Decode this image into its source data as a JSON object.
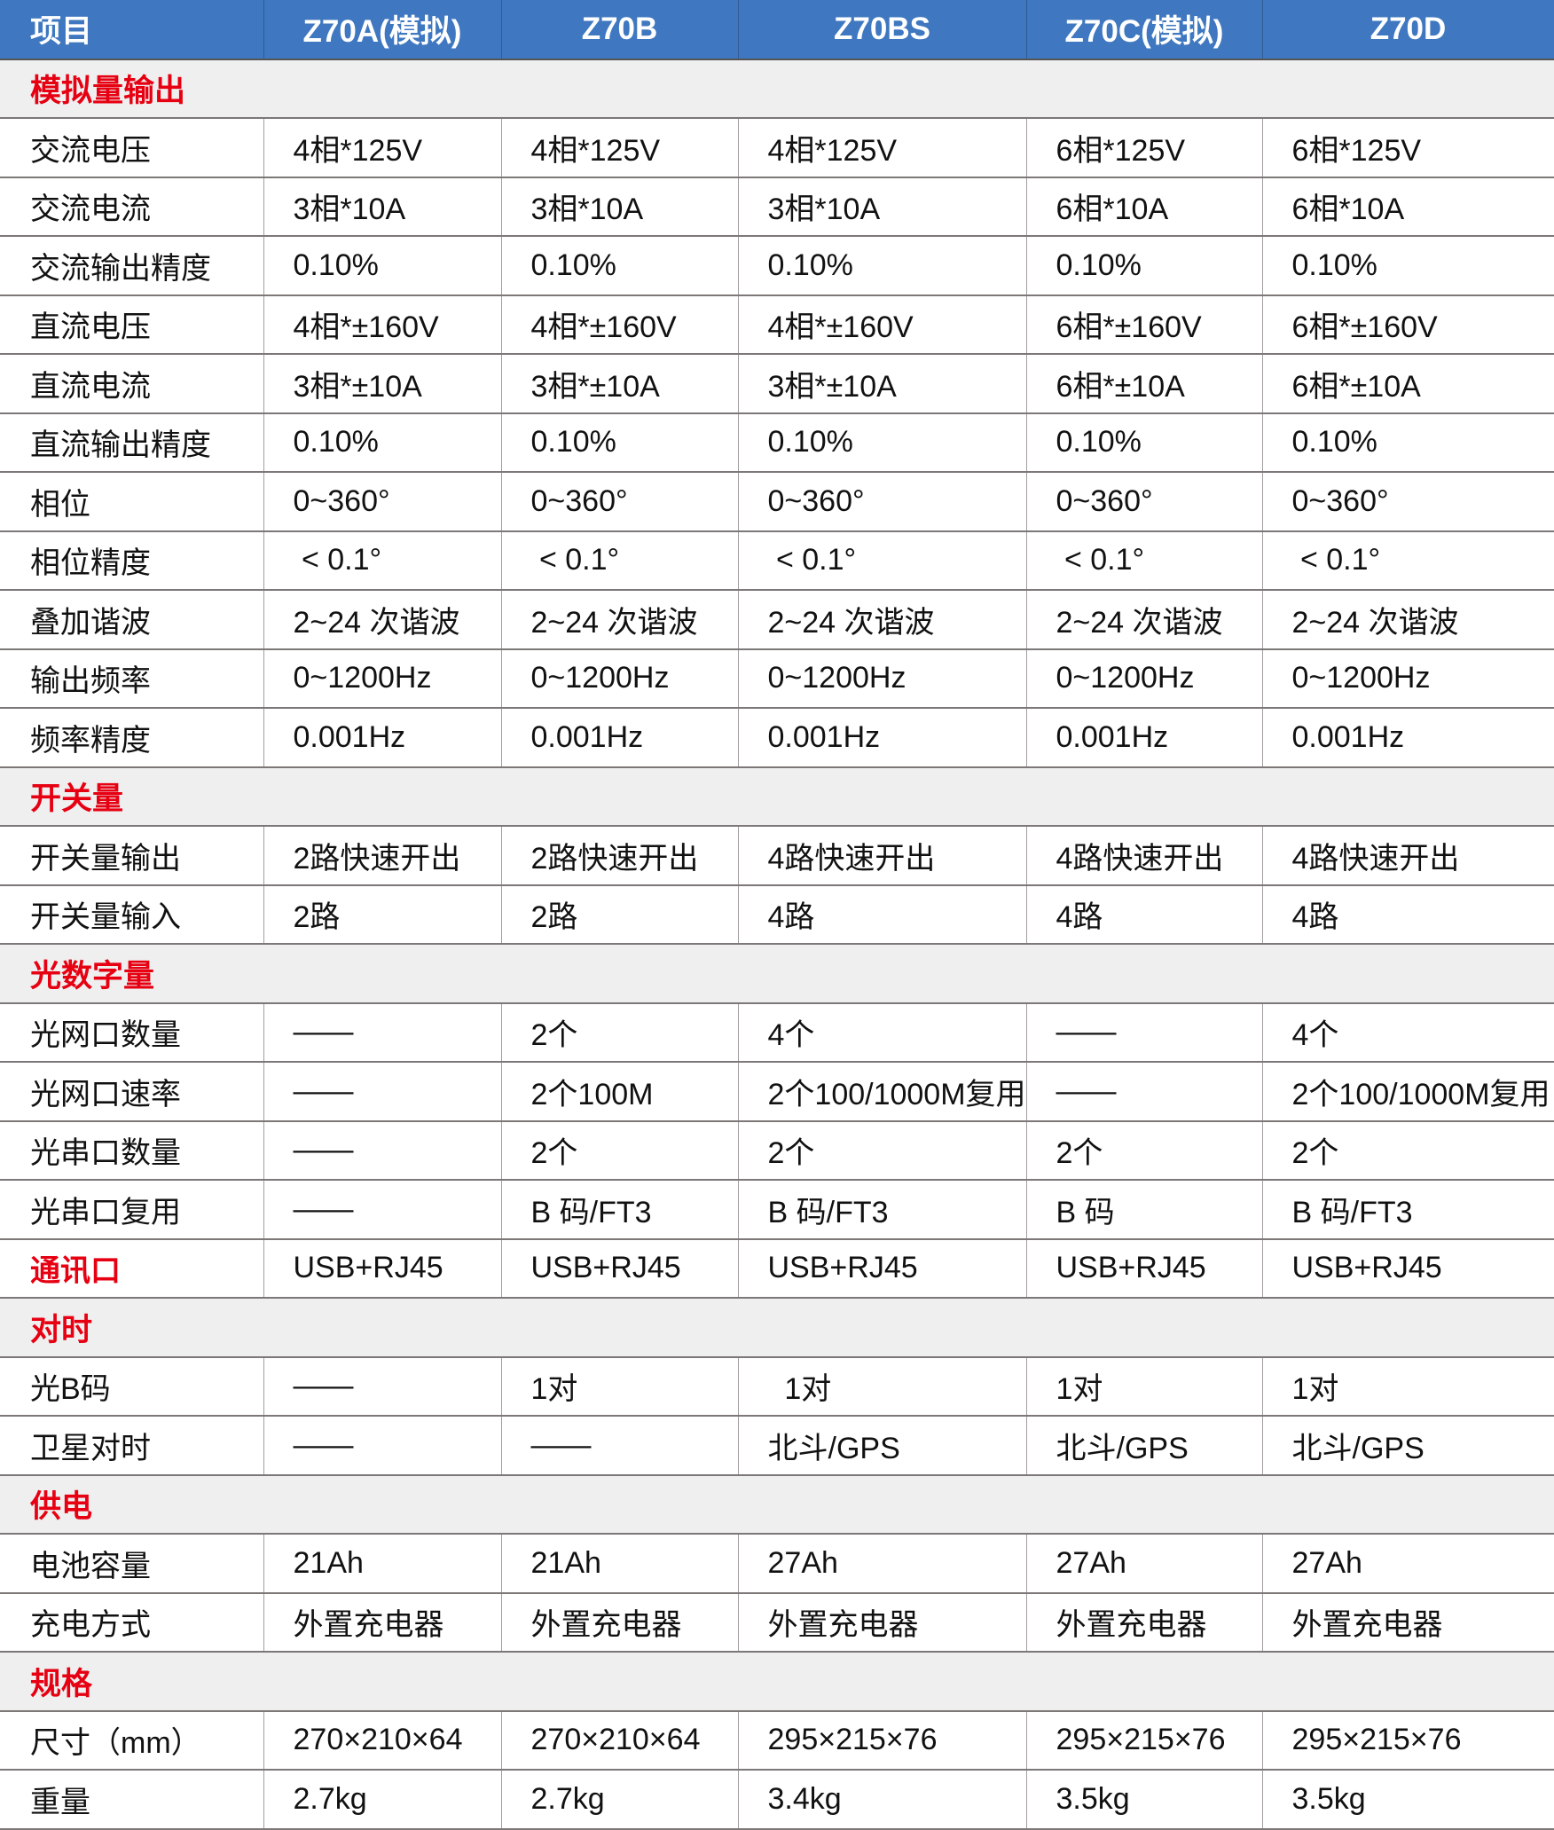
{
  "colors": {
    "header_bg": "#3f78c0",
    "section_bg": "#efefef",
    "section_text": "#e60012"
  },
  "headers": [
    "项目",
    "Z70A(模拟)",
    "Z70B",
    "Z70BS",
    "Z70C(模拟)",
    "Z70D"
  ],
  "rows": [
    {
      "type": "section",
      "title": "模拟量输出"
    },
    {
      "label": "交流电压",
      "values": [
        "4相*125V",
        "4相*125V",
        "4相*125V",
        "6相*125V",
        "6相*125V"
      ]
    },
    {
      "label": "交流电流",
      "values": [
        "3相*10A",
        "3相*10A",
        "3相*10A",
        "6相*10A",
        "6相*10A"
      ]
    },
    {
      "label": "交流输出精度",
      "values": [
        "0.10%",
        "0.10%",
        "0.10%",
        "0.10%",
        "0.10%"
      ]
    },
    {
      "label": "直流电压",
      "values": [
        "4相*±160V",
        "4相*±160V",
        "4相*±160V",
        "6相*±160V",
        "6相*±160V"
      ]
    },
    {
      "label": "直流电流",
      "values": [
        "3相*±10A",
        "3相*±10A",
        "3相*±10A",
        "6相*±10A",
        "6相*±10A"
      ]
    },
    {
      "label": "直流输出精度",
      "values": [
        "0.10%",
        "0.10%",
        "0.10%",
        "0.10%",
        "0.10%"
      ]
    },
    {
      "label": "相位",
      "values": [
        "0~360°",
        "0~360°",
        "0~360°",
        "0~360°",
        "0~360°"
      ]
    },
    {
      "label": "相位精度",
      "values": [
        " < 0.1°",
        " < 0.1°",
        " < 0.1°",
        " < 0.1°",
        " < 0.1°"
      ]
    },
    {
      "label": "叠加谐波",
      "values": [
        "2~24 次谐波",
        "2~24 次谐波",
        "2~24 次谐波",
        "2~24 次谐波",
        "2~24 次谐波"
      ]
    },
    {
      "label": "输出频率",
      "values": [
        "0~1200Hz",
        "0~1200Hz",
        "0~1200Hz",
        "0~1200Hz",
        "0~1200Hz"
      ]
    },
    {
      "label": "频率精度",
      "values": [
        "0.001Hz",
        "0.001Hz",
        "0.001Hz",
        "0.001Hz",
        "0.001Hz"
      ]
    },
    {
      "type": "section",
      "title": "开关量"
    },
    {
      "label": "开关量输出",
      "values": [
        "2路快速开出",
        "2路快速开出",
        "4路快速开出",
        "4路快速开出",
        "4路快速开出"
      ]
    },
    {
      "label": "开关量输入",
      "values": [
        "2路",
        "2路",
        "4路",
        "4路",
        "4路"
      ]
    },
    {
      "type": "section",
      "title": "光数字量"
    },
    {
      "label": "光网口数量",
      "values": [
        "——",
        "2个",
        "4个",
        "——",
        "4个"
      ]
    },
    {
      "label": "光网口速率",
      "values": [
        "——",
        "2个100M",
        "2个100/1000M复用",
        "——",
        "2个100/1000M复用"
      ]
    },
    {
      "label": "光串口数量",
      "values": [
        "——",
        "2个",
        "2个",
        "2个",
        "2个"
      ]
    },
    {
      "label": "光串口复用",
      "values": [
        "——",
        "B 码/FT3",
        "B 码/FT3",
        "B 码",
        "B 码/FT3"
      ]
    },
    {
      "label": "通讯口",
      "red": true,
      "values": [
        "USB+RJ45",
        "USB+RJ45",
        "USB+RJ45",
        "USB+RJ45",
        "USB+RJ45"
      ]
    },
    {
      "type": "section",
      "title": "对时"
    },
    {
      "label": "光B码",
      "values": [
        "——",
        "1对",
        "  1对",
        "1对",
        "1对"
      ]
    },
    {
      "label": "卫星对时",
      "values": [
        "——",
        "——",
        "北斗/GPS",
        "北斗/GPS",
        "北斗/GPS"
      ]
    },
    {
      "type": "section",
      "title": "供电"
    },
    {
      "label": "电池容量",
      "values": [
        "21Ah",
        "21Ah",
        "27Ah",
        "27Ah",
        "27Ah"
      ]
    },
    {
      "label": "充电方式",
      "values": [
        "外置充电器",
        "外置充电器",
        "外置充电器",
        "外置充电器",
        "外置充电器"
      ]
    },
    {
      "type": "section",
      "title": "规格"
    },
    {
      "label": "尺寸（mm）",
      "values": [
        "270×210×64",
        "270×210×64",
        "295×215×76",
        "295×215×76",
        "295×215×76"
      ]
    },
    {
      "label": "重量",
      "values": [
        "2.7kg",
        "2.7kg",
        "3.4kg",
        "3.5kg",
        "3.5kg"
      ]
    }
  ]
}
